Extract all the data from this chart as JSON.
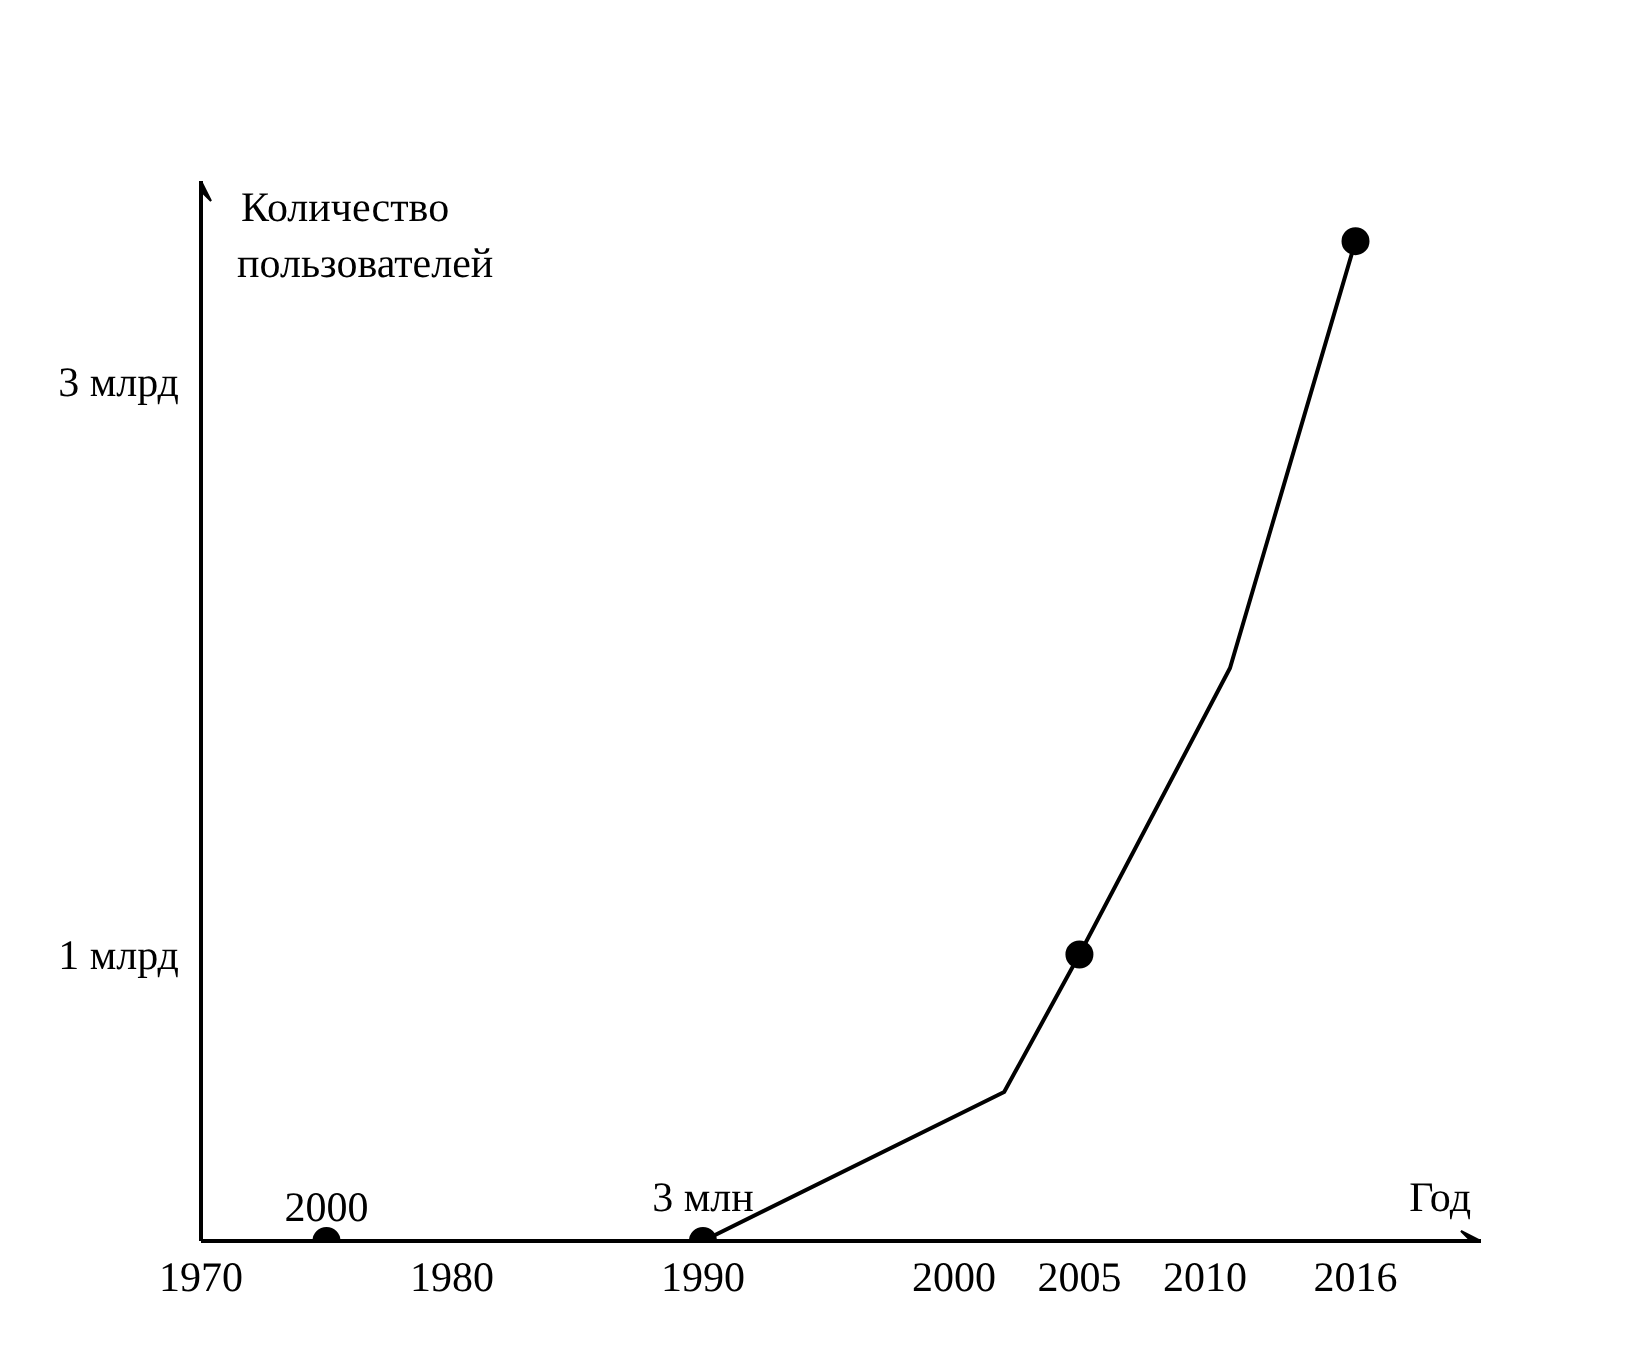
{
  "chart_data": {
    "type": "line",
    "xlabel": "Год",
    "ylabel": "Количество пользователей",
    "xlim": [
      1970,
      2021
    ],
    "xticks": [
      1970,
      1980,
      1990,
      2000,
      2005,
      2010,
      2016
    ],
    "ylim": [
      0,
      3.7
    ],
    "yticks": [
      {
        "value": 1,
        "label": "1 млрд"
      },
      {
        "value": 3,
        "label": "3 млрд"
      }
    ],
    "line_style": "solid",
    "marker": "none",
    "series": [
      {
        "color": "#000000",
        "x": [
          1975,
          1990,
          2002,
          2005,
          2011,
          2016
        ],
        "values": [
          0,
          0,
          0.52,
          1,
          2.0,
          3.49
        ]
      },
      {
        "type": "scatter",
        "marker": "circle",
        "color": "#000000",
        "x": [
          1975,
          1990,
          2005,
          2016
        ],
        "values": [
          0,
          0,
          1,
          3.49
        ]
      }
    ],
    "annotations": [
      {
        "text": "2000",
        "x": 1975,
        "y": 0
      },
      {
        "text": "3 млн",
        "x": 1990,
        "y": 0
      }
    ]
  }
}
